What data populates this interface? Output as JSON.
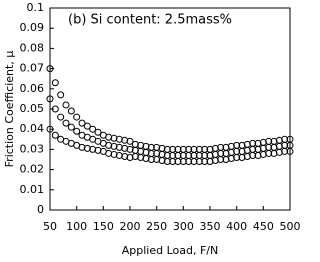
{
  "chart_data": {
    "type": "scatter",
    "title": "(b) Si content: 2.5mass%",
    "x_label": "Applied Load, F/N",
    "y_label": "Friction Coefficient, μ",
    "x": [
      50,
      60,
      70,
      80,
      90,
      100,
      110,
      120,
      130,
      140,
      150,
      160,
      170,
      180,
      190,
      200,
      210,
      220,
      230,
      240,
      250,
      260,
      270,
      280,
      290,
      300,
      310,
      320,
      330,
      340,
      350,
      360,
      370,
      380,
      390,
      400,
      410,
      420,
      430,
      440,
      450,
      460,
      470,
      480,
      490,
      500
    ],
    "series": [
      {
        "color": "#000000",
        "values": [
          0.04,
          0.037,
          0.035,
          0.034,
          0.033,
          0.032,
          0.031,
          0.0305,
          0.03,
          0.0295,
          0.029,
          0.028,
          0.0275,
          0.027,
          0.0265,
          0.026,
          0.0265,
          0.026,
          0.0255,
          0.025,
          0.025,
          0.0245,
          0.024,
          0.024,
          0.024,
          0.024,
          0.024,
          0.024,
          0.024,
          0.024,
          0.024,
          0.0245,
          0.025,
          0.025,
          0.0255,
          0.026,
          0.026,
          0.0265,
          0.027,
          0.027,
          0.0275,
          0.028,
          0.028,
          0.0285,
          0.029,
          0.029
        ]
      },
      {
        "color": "#000000",
        "values": [
          0.055,
          0.05,
          0.046,
          0.043,
          0.041,
          0.039,
          0.037,
          0.036,
          0.035,
          0.034,
          0.033,
          0.032,
          0.0315,
          0.031,
          0.0305,
          0.03,
          0.0295,
          0.029,
          0.0285,
          0.028,
          0.028,
          0.0275,
          0.027,
          0.027,
          0.027,
          0.027,
          0.027,
          0.027,
          0.027,
          0.027,
          0.027,
          0.0275,
          0.028,
          0.028,
          0.0285,
          0.029,
          0.029,
          0.0295,
          0.03,
          0.03,
          0.0305,
          0.031,
          0.031,
          0.0315,
          0.032,
          0.032
        ]
      },
      {
        "color": "#000000",
        "values": [
          0.07,
          0.063,
          0.057,
          0.052,
          0.049,
          0.046,
          0.043,
          0.0415,
          0.04,
          0.0385,
          0.037,
          0.036,
          0.0355,
          0.035,
          0.0345,
          0.034,
          0.0325,
          0.032,
          0.0315,
          0.031,
          0.031,
          0.0305,
          0.03,
          0.03,
          0.03,
          0.03,
          0.03,
          0.03,
          0.03,
          0.03,
          0.03,
          0.0305,
          0.031,
          0.031,
          0.0315,
          0.032,
          0.032,
          0.0325,
          0.033,
          0.033,
          0.0335,
          0.034,
          0.034,
          0.0345,
          0.035,
          0.035
        ]
      }
    ],
    "xlim": [
      50,
      500
    ],
    "xticks": [
      50,
      100,
      150,
      200,
      250,
      300,
      350,
      400,
      450,
      500
    ],
    "ylim": [
      0,
      0.1
    ],
    "yticks": [
      0,
      0.01,
      0.02,
      0.03,
      0.04,
      0.05,
      0.06,
      0.07,
      0.08,
      0.09,
      0.1
    ],
    "grid": false
  }
}
